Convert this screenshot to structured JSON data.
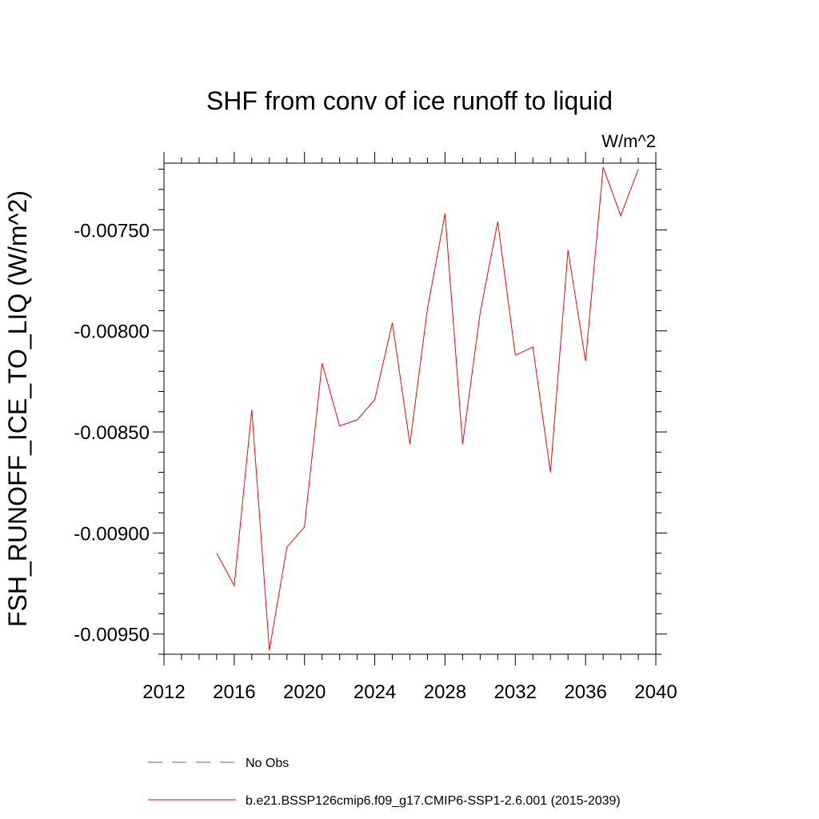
{
  "chart_data": {
    "type": "line",
    "title": "SHF from conv of ice runoff to liquid",
    "units": "W/m^2",
    "ylabel": "FSH_RUNOFF_ICE_TO_LIQ  (W/m^2)",
    "xlabel": "",
    "xlim": [
      2012,
      2040
    ],
    "ylim": [
      -0.0096,
      -0.00717
    ],
    "x_ticks": [
      2012,
      2016,
      2020,
      2024,
      2028,
      2032,
      2036,
      2040
    ],
    "x_tick_labels": [
      "2012",
      "2016",
      "2020",
      "2024",
      "2028",
      "2032",
      "2036",
      "2040"
    ],
    "y_ticks": [
      -0.0075,
      -0.008,
      -0.0085,
      -0.009,
      -0.0095
    ],
    "y_tick_labels": [
      "-0.00750",
      "-0.00800",
      "-0.00850",
      "-0.00900",
      "-0.00950"
    ],
    "grid": false,
    "legend_position": "bottom",
    "series": [
      {
        "name": "No Obs",
        "color": "#6a5acd",
        "dash": true,
        "x": [],
        "values": []
      },
      {
        "name": "b.e21.BSSP126cmip6.f09_g17.CMIP6-SSP1-2.6.001 (2015-2039)",
        "color": "#ff0000",
        "dash": false,
        "x": [
          2015,
          2016,
          2017,
          2018,
          2019,
          2020,
          2021,
          2022,
          2023,
          2024,
          2025,
          2026,
          2027,
          2028,
          2029,
          2030,
          2031,
          2032,
          2033,
          2034,
          2035,
          2036,
          2037,
          2038,
          2039
        ],
        "values": [
          -0.0091,
          -0.00926,
          -0.00839,
          -0.00958,
          -0.00907,
          -0.00897,
          -0.00816,
          -0.00847,
          -0.00844,
          -0.00834,
          -0.00796,
          -0.00856,
          -0.00789,
          -0.00742,
          -0.00856,
          -0.00791,
          -0.00746,
          -0.00812,
          -0.00808,
          -0.0087,
          -0.0076,
          -0.00815,
          -0.00719,
          -0.00743,
          -0.0072
        ]
      }
    ]
  }
}
